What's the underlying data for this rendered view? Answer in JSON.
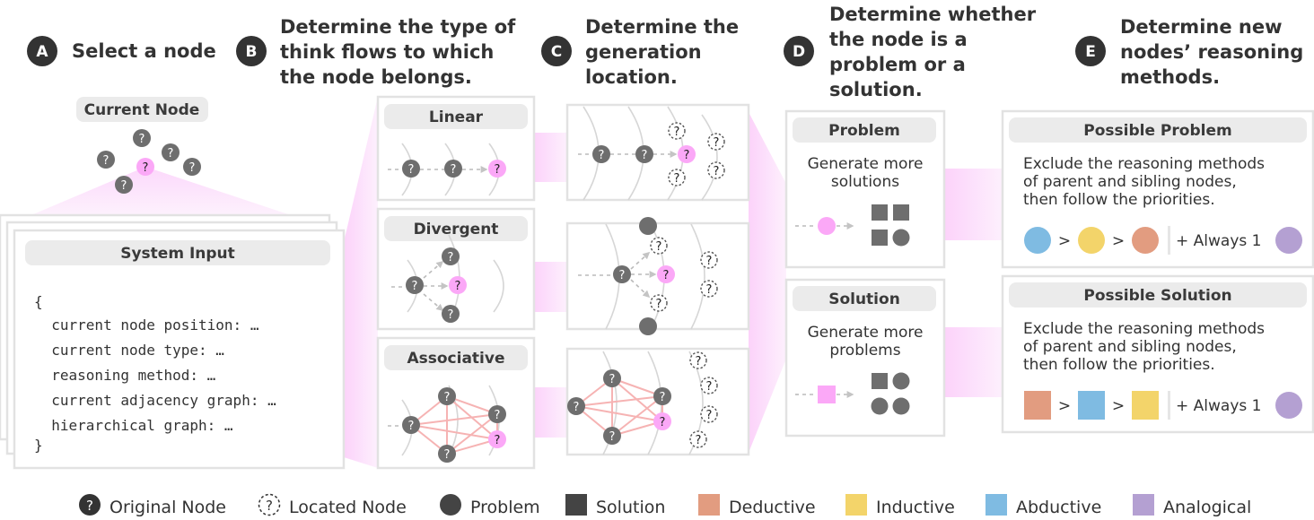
{
  "node_glyph": "?",
  "colors": {
    "original_node": "#6e6e6e",
    "current_node": "#fba8f7",
    "edge": "#f6b3b3",
    "deductive": "#e29c80",
    "inductive": "#f3d46a",
    "abductive": "#7fbbe2",
    "analogical": "#b4a0d2"
  },
  "steps": [
    {
      "badge": "A",
      "lines": [
        "Select a node"
      ]
    },
    {
      "badge": "B",
      "lines": [
        "Determine the type of",
        "think flows to which",
        "the node belongs."
      ]
    },
    {
      "badge": "C",
      "lines": [
        "Determine the",
        "generation",
        "location."
      ]
    },
    {
      "badge": "D",
      "lines": [
        "Determine whether",
        "the node is a",
        "problem or a",
        "solution."
      ]
    },
    {
      "badge": "E",
      "lines": [
        "Determine new",
        "nodes’ reasoning",
        "methods."
      ]
    }
  ],
  "current_node_label": "Current Node",
  "system_input": {
    "title": "System Input",
    "lines": [
      "{",
      "  current node position: …",
      "  current node type: …",
      "  reasoning method: …",
      "  current adjacency graph: …",
      "  hierarchical graph: …",
      "}"
    ]
  },
  "flow_types": [
    "Linear",
    "Divergent",
    "Associative"
  ],
  "node_types": [
    {
      "title": "Problem",
      "desc": [
        "Generate more",
        "solutions"
      ]
    },
    {
      "title": "Solution",
      "desc": [
        "Generate more",
        "problems"
      ]
    }
  ],
  "reasoning": [
    {
      "title": "Possible Problem",
      "desc": [
        "Exclude the reasoning methods",
        "of parent and sibling nodes,",
        "then follow the priorities."
      ],
      "priority": [
        "abductive",
        "inductive",
        "deductive"
      ],
      "shape": "circle",
      "gt": ">",
      "always": "+ Always 1",
      "always_method": "analogical"
    },
    {
      "title": "Possible Solution",
      "desc": [
        "Exclude the reasoning methods",
        "of parent and sibling nodes,",
        "then follow the priorities."
      ],
      "priority": [
        "deductive",
        "abductive",
        "inductive"
      ],
      "shape": "square",
      "gt": ">",
      "always": "+ Always 1",
      "always_method": "analogical"
    }
  ],
  "legend": [
    {
      "label": "Original Node",
      "icon": "question-circle-dark"
    },
    {
      "label": "Located Node",
      "icon": "question-circle-dashed"
    },
    {
      "label": "Problem",
      "icon": "circle-dark"
    },
    {
      "label": "Solution",
      "icon": "square-dark"
    },
    {
      "label": "Deductive",
      "icon": "square-deductive"
    },
    {
      "label": "Inductive",
      "icon": "square-inductive"
    },
    {
      "label": "Abductive",
      "icon": "square-abductive"
    },
    {
      "label": "Analogical",
      "icon": "square-analogical"
    }
  ]
}
